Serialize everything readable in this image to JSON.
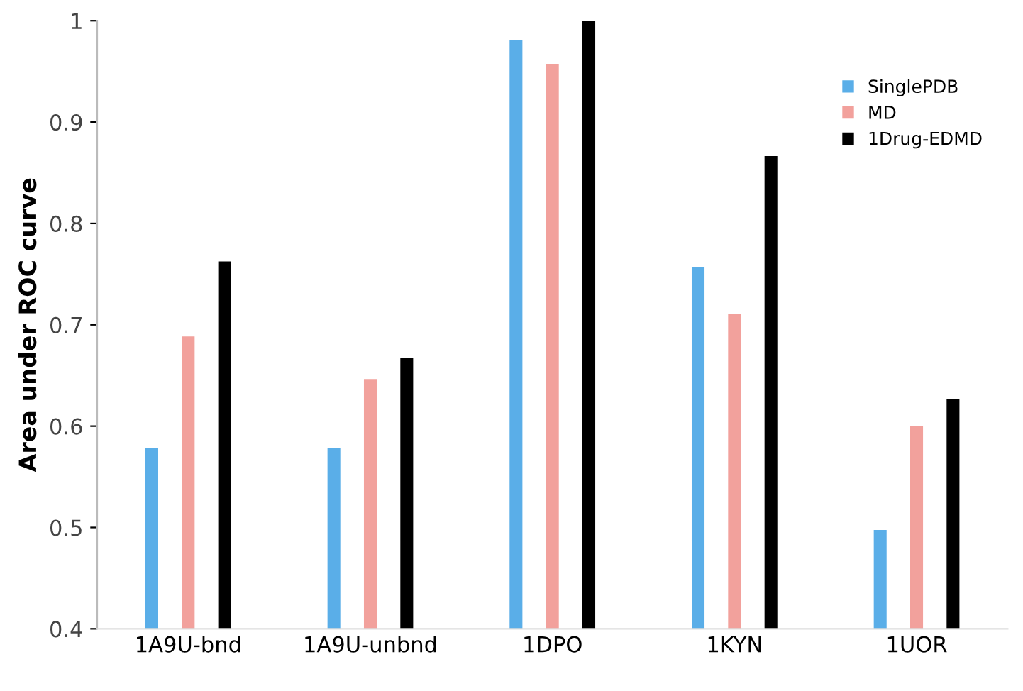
{
  "chart_data": {
    "type": "bar",
    "ylabel": "Area under ROC curve",
    "categories": [
      "1A9U-bnd",
      "1A9U-unbnd",
      "1DPO",
      "1KYN",
      "1UOR"
    ],
    "series": [
      {
        "name": "SinglePDB",
        "color": "#5aaee8",
        "values": [
          0.578,
          0.578,
          0.98,
          0.756,
          0.497
        ]
      },
      {
        "name": "MD",
        "color": "#f2a19c",
        "values": [
          0.688,
          0.646,
          0.957,
          0.71,
          0.6
        ]
      },
      {
        "name": "1Drug-EDMD",
        "color": "#000000",
        "values": [
          0.762,
          0.667,
          1.0,
          0.866,
          0.626
        ]
      }
    ],
    "ylim": [
      0.4,
      1
    ],
    "yticks": [
      0.4,
      0.5,
      0.6,
      0.7,
      0.8,
      0.9,
      1
    ],
    "grid": false,
    "legend": "top right"
  }
}
